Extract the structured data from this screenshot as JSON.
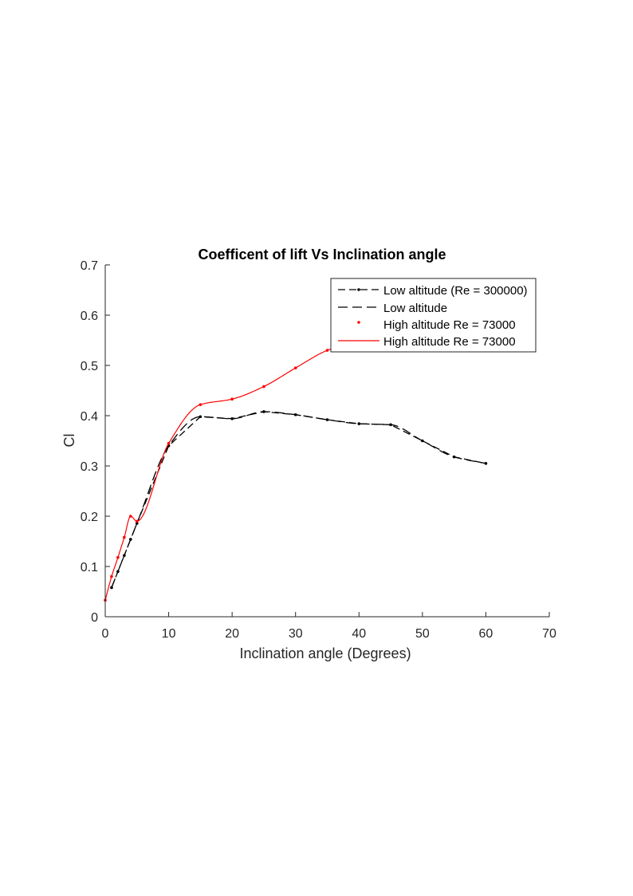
{
  "chart_data": {
    "type": "line",
    "title": "Coefficent of lift Vs Inclination angle",
    "xlabel": "Inclination angle (Degrees)",
    "ylabel": "Cl",
    "xlim": [
      0,
      70
    ],
    "ylim": [
      0,
      0.7
    ],
    "xticks": [
      0,
      10,
      20,
      30,
      40,
      50,
      60,
      70
    ],
    "yticks": [
      0,
      0.1,
      0.2,
      0.3,
      0.4,
      0.5,
      0.6,
      0.7
    ],
    "xtick_labels": [
      "0",
      "10",
      "20",
      "30",
      "40",
      "50",
      "60",
      "70"
    ],
    "ytick_labels": [
      "0",
      "0.1",
      "0.2",
      "0.3",
      "0.4",
      "0.5",
      "0.6",
      "0.7"
    ],
    "grid": false,
    "legend_position": "top-right",
    "series": [
      {
        "name": "Low altitude (Re = 300000)",
        "style": "dashed-markers",
        "color": "#000000",
        "x": [
          1,
          2,
          3,
          4,
          5,
          10,
          15,
          20,
          25,
          30,
          35,
          40,
          45,
          50,
          55,
          60
        ],
        "y": [
          0.058,
          0.09,
          0.122,
          0.154,
          0.186,
          0.34,
          0.398,
          0.394,
          0.408,
          0.402,
          0.392,
          0.384,
          0.382,
          0.35,
          0.318,
          0.305
        ]
      },
      {
        "name": "Low altitude",
        "style": "dashed-smooth",
        "color": "#000000",
        "x": [
          1,
          2,
          3,
          4,
          5,
          10,
          15,
          20,
          25,
          30,
          35,
          40,
          45,
          50,
          55,
          60
        ],
        "y": [
          0.058,
          0.09,
          0.122,
          0.154,
          0.186,
          0.34,
          0.398,
          0.394,
          0.408,
          0.402,
          0.392,
          0.384,
          0.382,
          0.35,
          0.318,
          0.305
        ]
      },
      {
        "name": "High altitude Re = 73000",
        "style": "points",
        "color": "#ff0000",
        "x": [
          0,
          1,
          2,
          3,
          4,
          5,
          10,
          15,
          20,
          25,
          30,
          35,
          40
        ],
        "y": [
          0.033,
          0.08,
          0.118,
          0.158,
          0.2,
          0.19,
          0.345,
          0.422,
          0.433,
          0.458,
          0.495,
          0.53,
          0.55
        ]
      },
      {
        "name": "High altitude Re = 73000",
        "style": "solid-smooth",
        "color": "#ff0000",
        "x": [
          0,
          1,
          2,
          3,
          4,
          5,
          10,
          15,
          20,
          25,
          30,
          35,
          40
        ],
        "y": [
          0.033,
          0.08,
          0.118,
          0.158,
          0.2,
          0.19,
          0.345,
          0.422,
          0.433,
          0.458,
          0.495,
          0.53,
          0.55
        ]
      }
    ]
  }
}
